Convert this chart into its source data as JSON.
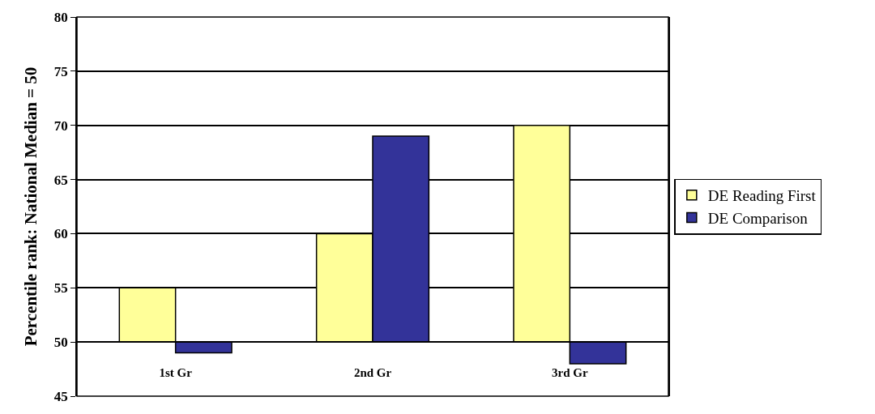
{
  "chart_data": {
    "type": "bar",
    "ylabel": "Percentile rank: National Median = 50",
    "categories": [
      "1st Gr",
      "2nd Gr",
      "3rd Gr"
    ],
    "series": [
      {
        "name": "DE Reading First",
        "color": "#ffff99",
        "values": [
          5,
          10,
          20
        ],
        "base": [
          50,
          50,
          50
        ]
      },
      {
        "name": "DE Comparison",
        "color": "#333399",
        "values": [
          -1,
          19,
          -2
        ],
        "base": [
          50,
          50,
          50
        ]
      }
    ],
    "ylim": [
      45,
      80
    ],
    "yticks": [
      45,
      50,
      55,
      60,
      65,
      70,
      75,
      80
    ],
    "grid": "y",
    "legend": "right"
  }
}
